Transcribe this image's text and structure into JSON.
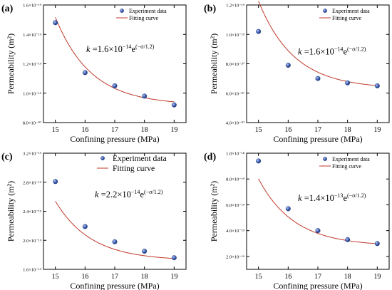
{
  "chart_data": [
    {
      "type": "scatter",
      "panel_label": "(a)",
      "xlabel": "Confining pressure (MPa)",
      "ylabel": "Permeability (m²)",
      "x_ticks": [
        "15",
        "16",
        "17",
        "18",
        "19"
      ],
      "y_ticks": [
        "8.0×10⁻²⁰",
        "1.0×10⁻¹⁹",
        "1.2×10⁻¹⁹",
        "1.4×10⁻¹⁹",
        "1.6×10⁻¹⁹"
      ],
      "x_tick_values": [
        15,
        16,
        17,
        18,
        19
      ],
      "y_tick_values": [
        8e-20,
        1e-19,
        1.2e-19,
        1.4e-19,
        1.6e-19
      ],
      "xlim": [
        14.6,
        19.4
      ],
      "ylim": [
        8e-20,
        1.6e-19
      ],
      "x": [
        15,
        16,
        17,
        18,
        19
      ],
      "y": [
        1.48e-19,
        1.14e-19,
        1.05e-19,
        9.8e-20,
        9.2e-20
      ],
      "fit": {
        "A": 1.6e-14,
        "B": 1.2,
        "C": 9.2e-20
      },
      "legend": {
        "position": "top-right",
        "point_label": "Experiment data",
        "line_label": "Fitting curve",
        "size": "small"
      },
      "equation": {
        "prefix": "k",
        "middle": " =1.6×10",
        "exp1": "−14",
        "e": "e",
        "exp2": "(−σ/1.2)"
      },
      "equation_fraction_pos": [
        0.3,
        0.4
      ]
    },
    {
      "type": "scatter",
      "panel_label": "(b)",
      "xlabel": "Confining pressure (MPa)",
      "ylabel": "Permeability (m²)",
      "x_ticks": [
        "15",
        "16",
        "17",
        "18",
        "19"
      ],
      "y_ticks": [
        "4.0×10⁻²⁰",
        "6.0×10⁻²⁰",
        "8.0×10⁻²⁰",
        "1.0×10⁻¹⁹",
        "1.2×10⁻¹⁹"
      ],
      "x_tick_values": [
        15,
        16,
        17,
        18,
        19
      ],
      "y_tick_values": [
        4e-20,
        6e-20,
        8e-20,
        1e-19,
        1.2e-19
      ],
      "xlim": [
        14.6,
        19.4
      ],
      "ylim": [
        4e-20,
        1.2e-19
      ],
      "x": [
        15,
        16,
        17,
        18,
        19
      ],
      "y": [
        1.02e-19,
        7.9e-20,
        7e-20,
        6.7e-20,
        6.5e-20
      ],
      "fit": {
        "A": 1.6e-14,
        "B": 1.2,
        "C": 6.3e-20
      },
      "legend": {
        "position": "top-right",
        "point_label": "Experiment data",
        "line_label": "Fitting curve",
        "size": "small"
      },
      "equation": {
        "prefix": "k",
        "middle": " =1.6×10",
        "exp1": "−14",
        "e": "e",
        "exp2": "(−σ/1.2)"
      },
      "equation_fraction_pos": [
        0.36,
        0.42
      ]
    },
    {
      "type": "scatter",
      "panel_label": "(c)",
      "xlabel": "Confining pressure (MPa)",
      "ylabel": "Permeability (m²)",
      "x_ticks": [
        "15",
        "16",
        "17",
        "18",
        "19"
      ],
      "y_ticks": [
        "1.6×10⁻¹⁹",
        "2.0×10⁻¹⁹",
        "2.4×10⁻¹⁹",
        "2.8×10⁻¹⁹",
        "3.2×10⁻¹⁹"
      ],
      "x_tick_values": [
        15,
        16,
        17,
        18,
        19
      ],
      "y_tick_values": [
        1.6e-19,
        2e-19,
        2.4e-19,
        2.8e-19,
        3.2e-19
      ],
      "xlim": [
        14.6,
        19.4
      ],
      "ylim": [
        1.6e-19,
        3.2e-19
      ],
      "x": [
        15,
        16,
        17,
        18,
        19
      ],
      "y": [
        2.81e-19,
        2.19e-19,
        1.98e-19,
        1.85e-19,
        1.76e-19
      ],
      "fit": {
        "A": 2.2e-14,
        "B": 1.2,
        "C": 1.72e-19
      },
      "legend": {
        "position": "top-right",
        "point_label": "Experiment data",
        "line_label": "Fitting curve",
        "size": "large"
      },
      "equation": {
        "prefix": "k",
        "middle": " =2.2×10",
        "exp1": "−14",
        "e": "e",
        "exp2": "(−σ/1.2)"
      },
      "equation_fraction_pos": [
        0.36,
        0.38
      ]
    },
    {
      "type": "scatter",
      "panel_label": "(d)",
      "xlabel": "Confining pressure (MPa)",
      "ylabel": "Permeability (m²)",
      "x_ticks": [
        "15",
        "16",
        "17",
        "18",
        "19"
      ],
      "y_ticks": [
        "2.0×10⁻¹⁹",
        "4.0×10⁻¹⁹",
        "6.0×10⁻¹⁹",
        "8.0×10⁻¹⁹",
        "1.0×10⁻¹⁸"
      ],
      "x_tick_values": [
        15,
        16,
        17,
        18,
        19
      ],
      "y_tick_values": [
        2e-19,
        4e-19,
        6e-19,
        8e-19,
        1e-18
      ],
      "xlim": [
        14.6,
        19.4
      ],
      "ylim": [
        1e-19,
        1e-18
      ],
      "x": [
        15,
        16,
        17,
        18,
        19
      ],
      "y": [
        9.4e-19,
        5.7e-19,
        4e-19,
        3.3e-19,
        3e-19
      ],
      "fit": {
        "A": 1.4e-13,
        "B": 1.2,
        "C": 2.8e-19
      },
      "legend": {
        "position": "top-right",
        "point_label": "Experiment data",
        "line_label": "Fitting curve",
        "size": "small"
      },
      "equation": {
        "prefix": "k",
        "middle": " =1.4×10",
        "exp1": "−13",
        "e": "e",
        "exp2": "(−σ/1.2)"
      },
      "equation_fraction_pos": [
        0.36,
        0.41
      ]
    }
  ],
  "colors": {
    "point_fill": "#3d5fb3",
    "point_edge": "#243b7a",
    "line": "#c0392b",
    "axis": "#000000",
    "text": "#000000"
  }
}
